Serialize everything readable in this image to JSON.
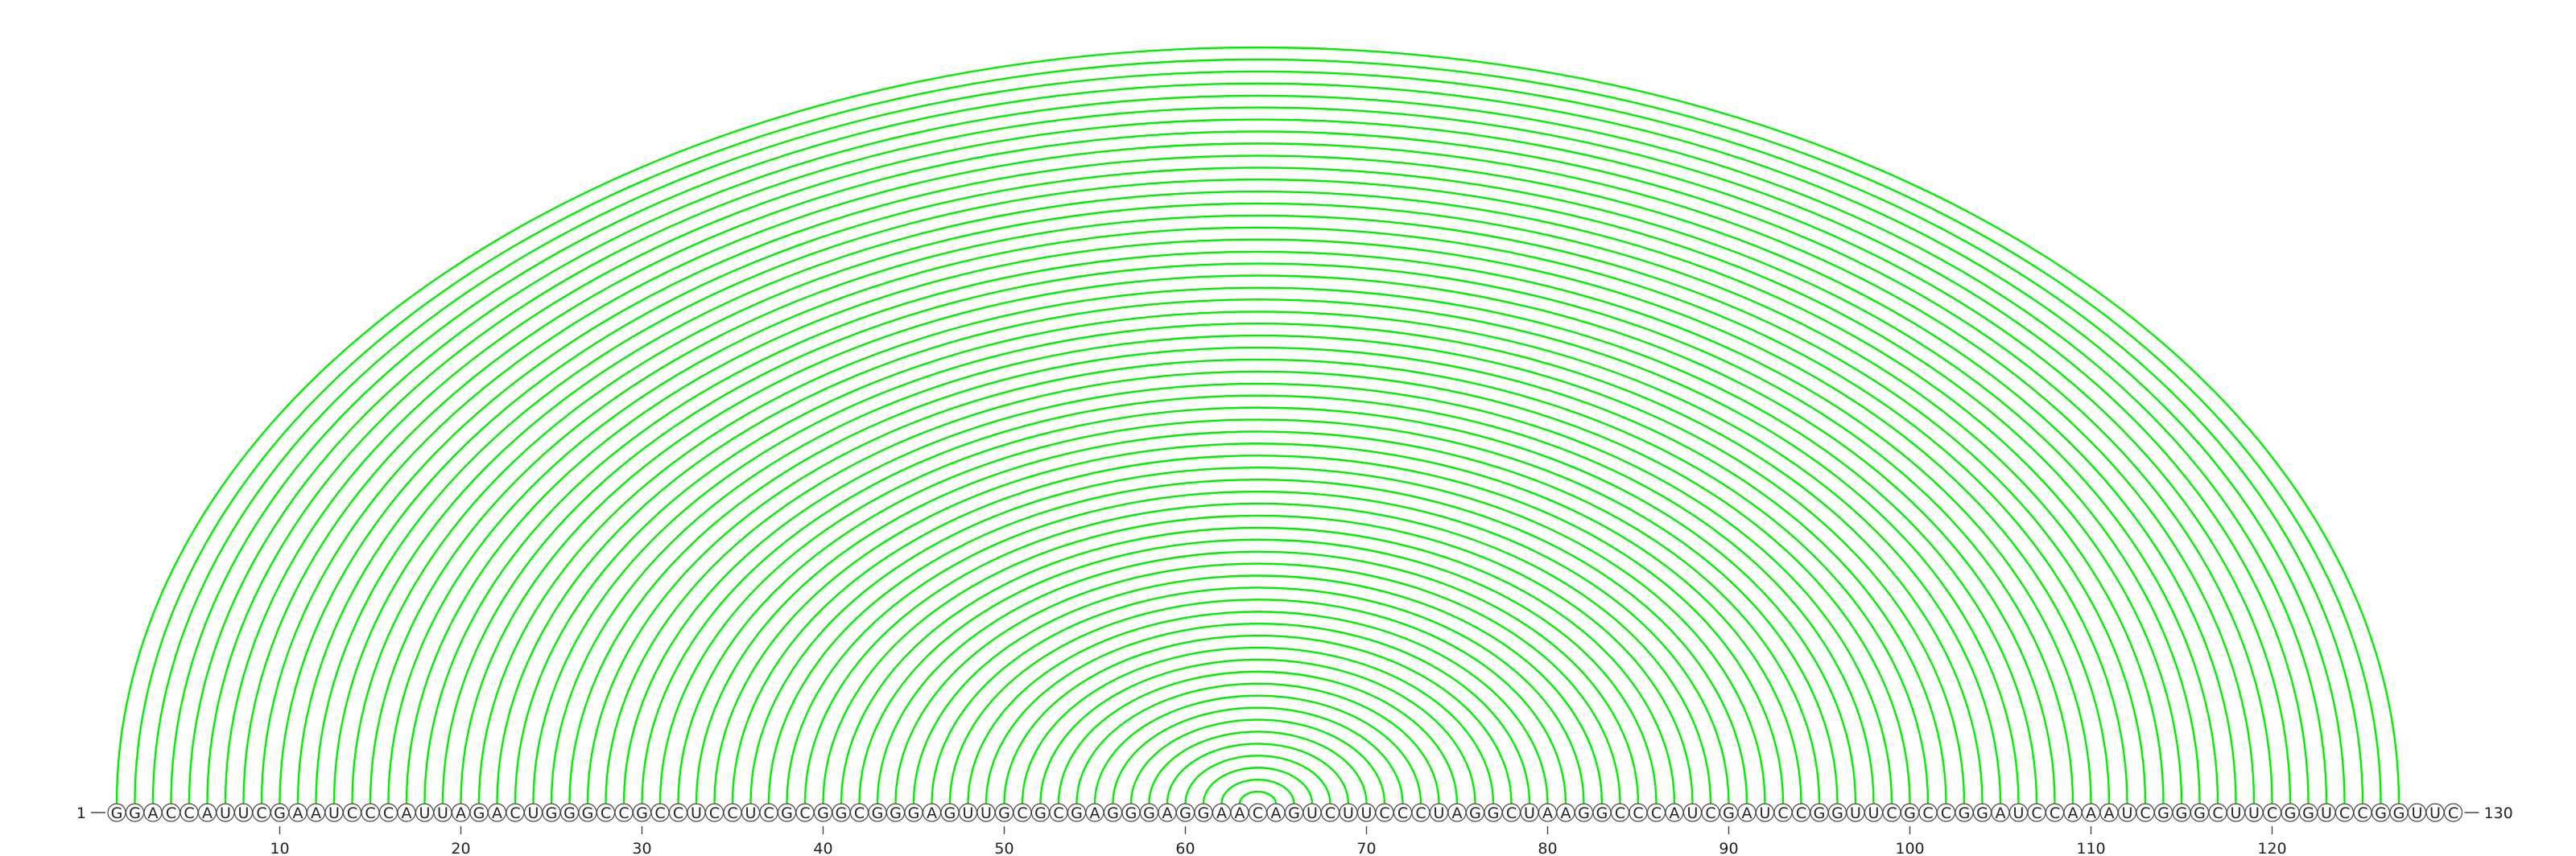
{
  "sequence": "GGACCAUUCGAAUCCCAUUAGACUGGGCCGCCUCCUCGCGGCGGGAGUUGCGCGAGGGAGGAACAGUCUUCCCUAGGCUAAGGCCCAUCGAUCCGGUUCGCCGGAUCCAAAUCGGGCUUCGGUCCGGUUC",
  "start_label": "1",
  "end_label": "130",
  "ticks": [
    10,
    20,
    30,
    40,
    50,
    60,
    70,
    80,
    90,
    100,
    110,
    120
  ],
  "colors": {
    "green": "#00ee00",
    "blue": "#0000ee"
  },
  "pairs": [
    [
      1,
      127,
      "green"
    ],
    [
      2,
      126,
      "green"
    ],
    [
      3,
      125,
      "green"
    ],
    [
      4,
      124,
      "green"
    ],
    [
      5,
      123,
      "green"
    ],
    [
      6,
      122,
      "green"
    ],
    [
      7,
      121,
      "green"
    ],
    [
      8,
      120,
      "green"
    ],
    [
      9,
      119,
      "green"
    ],
    [
      10,
      118,
      "green"
    ],
    [
      11,
      117,
      "green"
    ],
    [
      12,
      116,
      "green"
    ],
    [
      13,
      115,
      "green"
    ],
    [
      14,
      114,
      "green"
    ],
    [
      15,
      113,
      "green"
    ],
    [
      16,
      112,
      "green"
    ],
    [
      17,
      111,
      "green"
    ],
    [
      18,
      110,
      "green"
    ],
    [
      19,
      109,
      "green"
    ],
    [
      20,
      108,
      "green"
    ],
    [
      21,
      107,
      "green"
    ],
    [
      22,
      106,
      "green"
    ],
    [
      23,
      105,
      "green"
    ],
    [
      24,
      104,
      "green"
    ],
    [
      25,
      103,
      "green"
    ],
    [
      26,
      102,
      "green"
    ],
    [
      27,
      101,
      "green"
    ],
    [
      28,
      100,
      "green"
    ],
    [
      29,
      99,
      "green"
    ],
    [
      30,
      98,
      "green"
    ],
    [
      31,
      97,
      "green"
    ],
    [
      32,
      96,
      "green"
    ],
    [
      33,
      95,
      "green"
    ],
    [
      34,
      94,
      "green"
    ],
    [
      35,
      93,
      "green"
    ],
    [
      36,
      92,
      "green"
    ],
    [
      37,
      91,
      "green"
    ],
    [
      38,
      90,
      "green"
    ],
    [
      39,
      89,
      "green"
    ],
    [
      40,
      88,
      "green"
    ],
    [
      41,
      87,
      "green"
    ],
    [
      42,
      86,
      "green"
    ],
    [
      43,
      85,
      "green"
    ],
    [
      44,
      84,
      "green"
    ],
    [
      45,
      83,
      "green"
    ],
    [
      46,
      82,
      "green"
    ],
    [
      47,
      81,
      "green"
    ],
    [
      48,
      80,
      "green"
    ],
    [
      49,
      79,
      "green"
    ],
    [
      50,
      78,
      "green"
    ],
    [
      51,
      77,
      "green"
    ],
    [
      52,
      76,
      "green"
    ],
    [
      53,
      75,
      "green"
    ],
    [
      54,
      74,
      "green"
    ],
    [
      55,
      73,
      "green"
    ],
    [
      56,
      72,
      "green"
    ],
    [
      57,
      71,
      "green"
    ],
    [
      58,
      70,
      "green"
    ],
    [
      59,
      69,
      "green"
    ],
    [
      60,
      68,
      "green"
    ],
    [
      61,
      67,
      "green"
    ],
    [
      62,
      66,
      "green"
    ],
    [
      63,
      65,
      "green"
    ]
  ]
}
